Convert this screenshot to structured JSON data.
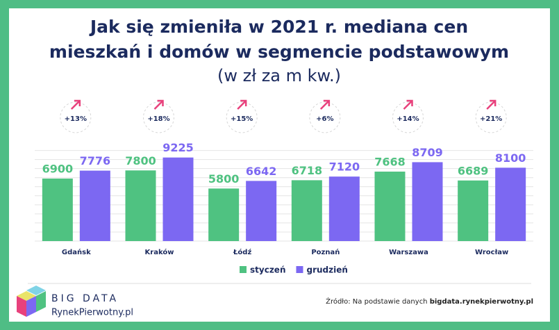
{
  "chart_data": {
    "type": "bar",
    "title": [
      "Jak się zmieniła w 2021 r. mediana cen",
      "mieszkań i domów w segmencie podstawowym"
    ],
    "subtitle": "(w zł za m kw.)",
    "categories": [
      "Gdańsk",
      "Kraków",
      "Łódź",
      "Poznań",
      "Warszawa",
      "Wrocław"
    ],
    "changes": [
      "+13%",
      "+18%",
      "+15%",
      "+6%",
      "+14%",
      "+21%"
    ],
    "series": [
      {
        "name": "styczeń",
        "color": "#4fc281",
        "values": [
          6900,
          7800,
          5800,
          6718,
          7668,
          6689
        ]
      },
      {
        "name": "grudzień",
        "color": "#7c68f2",
        "values": [
          7776,
          9225,
          6642,
          7120,
          8709,
          8100
        ]
      }
    ],
    "ylim": [
      0,
      10200
    ],
    "yticks": [
      0,
      1000,
      2000,
      3000,
      4000,
      5000,
      6000,
      7000,
      8000,
      9000,
      10000
    ],
    "grid": true
  },
  "logo": {
    "line1": "BIG DATA",
    "line2": "RynekPierwotny.pl"
  },
  "footer": {
    "source_text": "Źródło: Na podstawie danych",
    "source_link": "bigdata.rynekpierwotny.pl"
  }
}
